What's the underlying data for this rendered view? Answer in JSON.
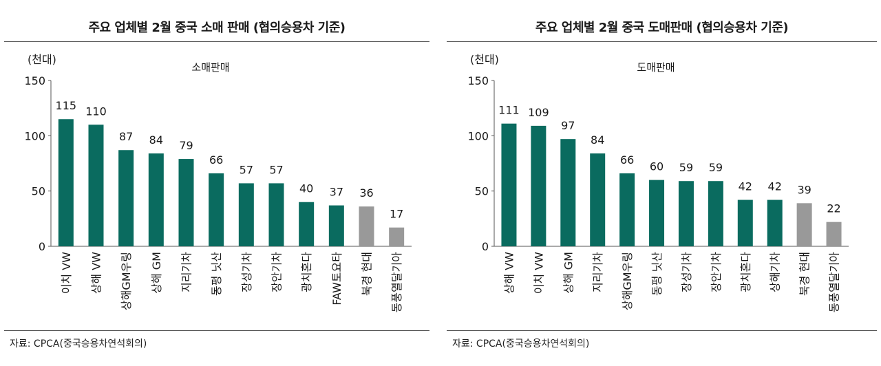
{
  "colors": {
    "main_bar": "#0a6b5f",
    "other_bar": "#999999",
    "axis": "#555555"
  },
  "chart_data": [
    {
      "type": "bar",
      "title": "주요 업체별 2월 중국 소매 판매 (협의승용차 기준)",
      "unit_label": "(천대)",
      "series_label": "소매판매",
      "categories": [
        "이치 VW",
        "상해 VW",
        "상해GM우링",
        "상해 GM",
        "지리기차",
        "동펑 닛산",
        "장성기차",
        "장안기차",
        "광치혼다",
        "FAW토요타",
        "북경 현대",
        "동풍열달기아"
      ],
      "values": [
        115,
        110,
        87,
        84,
        79,
        66,
        57,
        57,
        40,
        37,
        36,
        17
      ],
      "highlight": [
        false,
        false,
        false,
        false,
        false,
        false,
        false,
        false,
        false,
        false,
        true,
        true
      ],
      "ylim": [
        0,
        150
      ],
      "yticks": [
        0,
        50,
        100,
        150
      ],
      "source": "자료: CPCA(중국승용차연석회의)"
    },
    {
      "type": "bar",
      "title": "주요 업체별 2월 중국 도매판매 (협의승용차 기준)",
      "unit_label": "(천대)",
      "series_label": "도매판매",
      "categories": [
        "상해 VW",
        "이치 VW",
        "상해 GM",
        "지리기차",
        "상해GM우링",
        "동펑 닛산",
        "장성기차",
        "장안기차",
        "광치혼다",
        "상해기차",
        "북경 현대",
        "동풍열달기아"
      ],
      "values": [
        111,
        109,
        97,
        84,
        66,
        60,
        59,
        59,
        42,
        42,
        39,
        22
      ],
      "highlight": [
        false,
        false,
        false,
        false,
        false,
        false,
        false,
        false,
        false,
        false,
        true,
        true
      ],
      "ylim": [
        0,
        150
      ],
      "yticks": [
        0,
        50,
        100,
        150
      ],
      "source": "자료: CPCA(중국승용차연석회의)"
    }
  ]
}
